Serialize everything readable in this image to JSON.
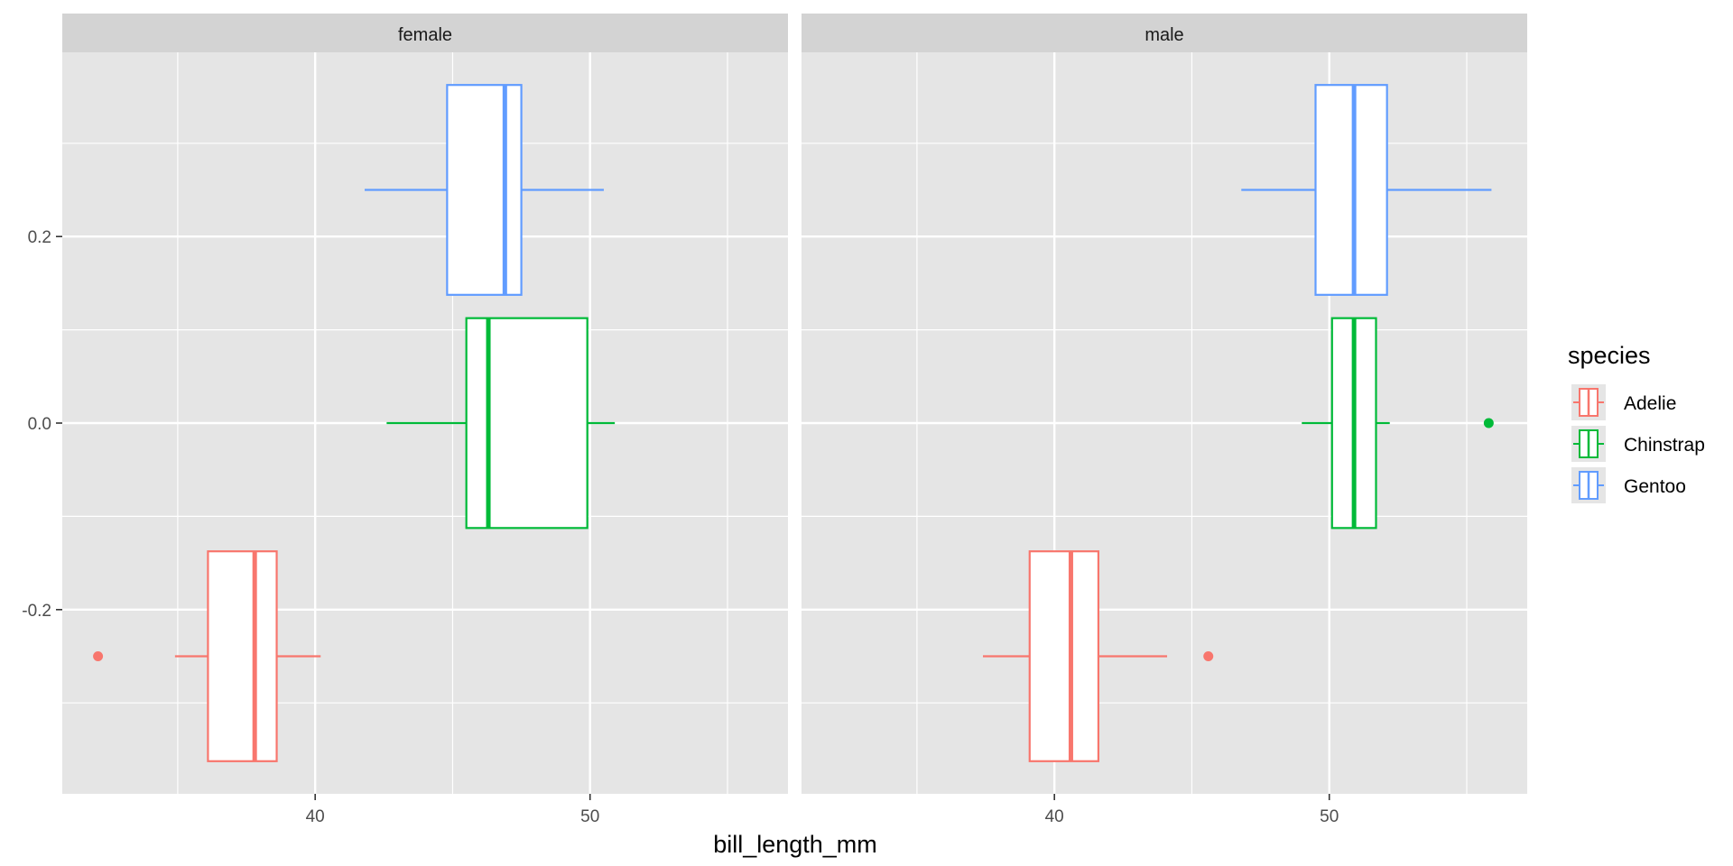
{
  "chart_data": {
    "type": "boxplot",
    "orientation": "horizontal",
    "facet_variable": "sex",
    "facets": [
      "female",
      "male"
    ],
    "xlabel": "bill_length_mm",
    "ylabel": "",
    "xlim": [
      30.8,
      57.2
    ],
    "ylim": [
      -0.3975,
      0.3975
    ],
    "x_ticks": [
      40,
      50
    ],
    "x_minor_ticks": [
      35,
      45,
      55
    ],
    "y_ticks": [
      -0.2,
      0.0,
      0.2
    ],
    "y_tick_labels": [
      "-0.2",
      "0.0",
      "0.2"
    ],
    "y_minor_ticks": [
      -0.3,
      -0.1,
      0.1,
      0.3
    ],
    "grid": true,
    "legend": {
      "title": "species",
      "placement": "right",
      "entries": [
        "Adelie",
        "Chinstrap",
        "Gentoo"
      ]
    },
    "series": [
      {
        "name": "Adelie",
        "color": "#F8766D",
        "y_center": -0.25,
        "boxes": [
          {
            "facet": "female",
            "whisker_low": 34.9,
            "q1": 36.1,
            "median": 37.8,
            "q3": 38.6,
            "whisker_high": 40.2,
            "outliers": [
              32.1
            ]
          },
          {
            "facet": "male",
            "whisker_low": 37.4,
            "q1": 39.1,
            "median": 40.6,
            "q3": 41.6,
            "whisker_high": 44.1,
            "outliers": [
              45.6
            ]
          }
        ]
      },
      {
        "name": "Chinstrap",
        "color": "#00BA38",
        "y_center": 0.0,
        "boxes": [
          {
            "facet": "female",
            "whisker_low": 42.6,
            "q1": 45.5,
            "median": 46.3,
            "q3": 49.9,
            "whisker_high": 50.9,
            "outliers": []
          },
          {
            "facet": "male",
            "whisker_low": 49.0,
            "q1": 50.1,
            "median": 50.9,
            "q3": 51.7,
            "whisker_high": 52.2,
            "outliers": [
              55.8
            ]
          }
        ]
      },
      {
        "name": "Gentoo",
        "color": "#619CFF",
        "y_center": 0.25,
        "boxes": [
          {
            "facet": "female",
            "whisker_low": 41.8,
            "q1": 44.8,
            "median": 46.9,
            "q3": 47.5,
            "whisker_high": 50.5,
            "outliers": []
          },
          {
            "facet": "male",
            "whisker_low": 46.8,
            "q1": 49.5,
            "median": 50.9,
            "q3": 52.1,
            "whisker_high": 55.9,
            "outliers": []
          }
        ]
      }
    ],
    "box_half_height": 0.1125,
    "colors": {
      "panel_background": "#E5E5E5",
      "grid_major": "#FFFFFF",
      "strip_background": "#D3D3D3",
      "box_fill": "#FFFFFF"
    }
  }
}
